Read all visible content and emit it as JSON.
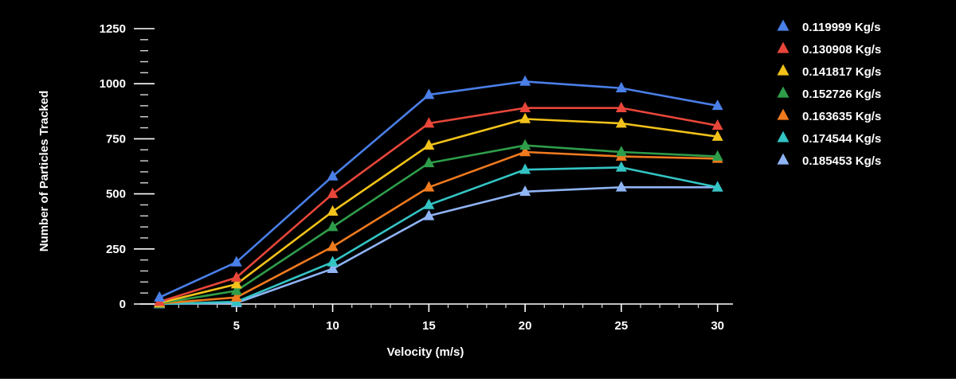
{
  "chart_data": {
    "type": "line",
    "xlabel": "Velocity  (m/s)",
    "ylabel": "Number of Particles Tracked",
    "xlim": [
      0,
      30.8
    ],
    "ylim": [
      0,
      1250
    ],
    "x": [
      1,
      5,
      10,
      15,
      20,
      25,
      30
    ],
    "x_ticks": [
      5,
      10,
      15,
      20,
      25,
      30
    ],
    "x_tick_labels": [
      "5",
      "10",
      "15",
      "20",
      "25",
      "30"
    ],
    "x_minor_step": 1,
    "y_ticks": [
      0,
      250,
      500,
      750,
      1000,
      1250
    ],
    "y_tick_labels": [
      "0",
      "250",
      "500",
      "750",
      "1000",
      "1250"
    ],
    "y_minor_step": 50,
    "marker": "triangle",
    "background": "#000000",
    "grid": false,
    "legend_position": "right",
    "series": [
      {
        "name": "0.119999 Kg/s",
        "color": "#4a7fe8",
        "values": [
          30,
          190,
          580,
          950,
          1010,
          980,
          900
        ]
      },
      {
        "name": "0.130908 Kg/s",
        "color": "#e8463a",
        "values": [
          10,
          120,
          500,
          820,
          890,
          890,
          810
        ]
      },
      {
        "name": "0.141817 Kg/s",
        "color": "#f2c21a",
        "values": [
          5,
          90,
          420,
          720,
          840,
          820,
          760
        ]
      },
      {
        "name": "0.152726 Kg/s",
        "color": "#2e9d4a",
        "values": [
          3,
          60,
          350,
          640,
          720,
          690,
          670
        ]
      },
      {
        "name": "0.163635 Kg/s",
        "color": "#f07a1e",
        "values": [
          2,
          30,
          260,
          530,
          690,
          670,
          660
        ]
      },
      {
        "name": "0.174544 Kg/s",
        "color": "#34c4c4",
        "values": [
          0,
          10,
          190,
          450,
          610,
          620,
          530
        ]
      },
      {
        "name": "0.185453 Kg/s",
        "color": "#8fb4f5",
        "values": [
          0,
          5,
          160,
          400,
          510,
          530,
          530
        ]
      }
    ]
  }
}
